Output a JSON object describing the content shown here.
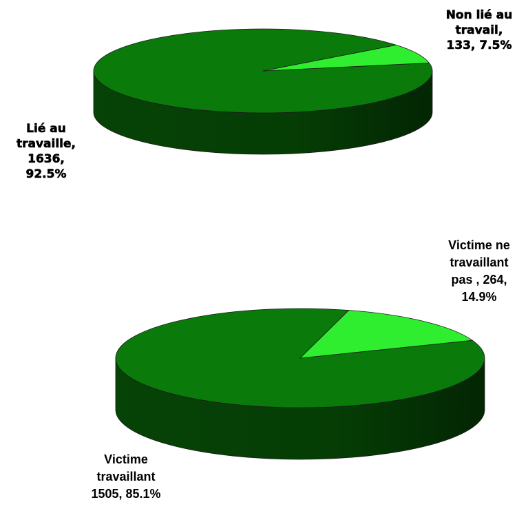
{
  "chart_data": [
    {
      "type": "pie",
      "three_d": true,
      "title": "",
      "slices": [
        {
          "name": "Lié au travaille",
          "value": 1636,
          "percent": 92.5,
          "color": "#0a7a0a",
          "label_lines": [
            "Lié au",
            "travaille,",
            "1636,",
            "92.5%"
          ]
        },
        {
          "name": "Non lié au travail",
          "value": 133,
          "percent": 7.5,
          "color": "#2fee2f",
          "label_lines": [
            "Non lié au",
            "travail,",
            "133, 7.5%"
          ]
        }
      ]
    },
    {
      "type": "pie",
      "three_d": true,
      "title": "",
      "slices": [
        {
          "name": "Victime travaillant",
          "value": 1505,
          "percent": 85.1,
          "color": "#0a7a0a",
          "label_lines": [
            "Victime",
            "travaillant",
            "1505, 85.1%"
          ]
        },
        {
          "name": "Victime ne travaillant pas",
          "value": 264,
          "percent": 14.9,
          "color": "#2fee2f",
          "label_lines": [
            "Victime ne",
            "travaillant",
            "pas , 264,",
            "14.9%"
          ]
        }
      ]
    }
  ]
}
